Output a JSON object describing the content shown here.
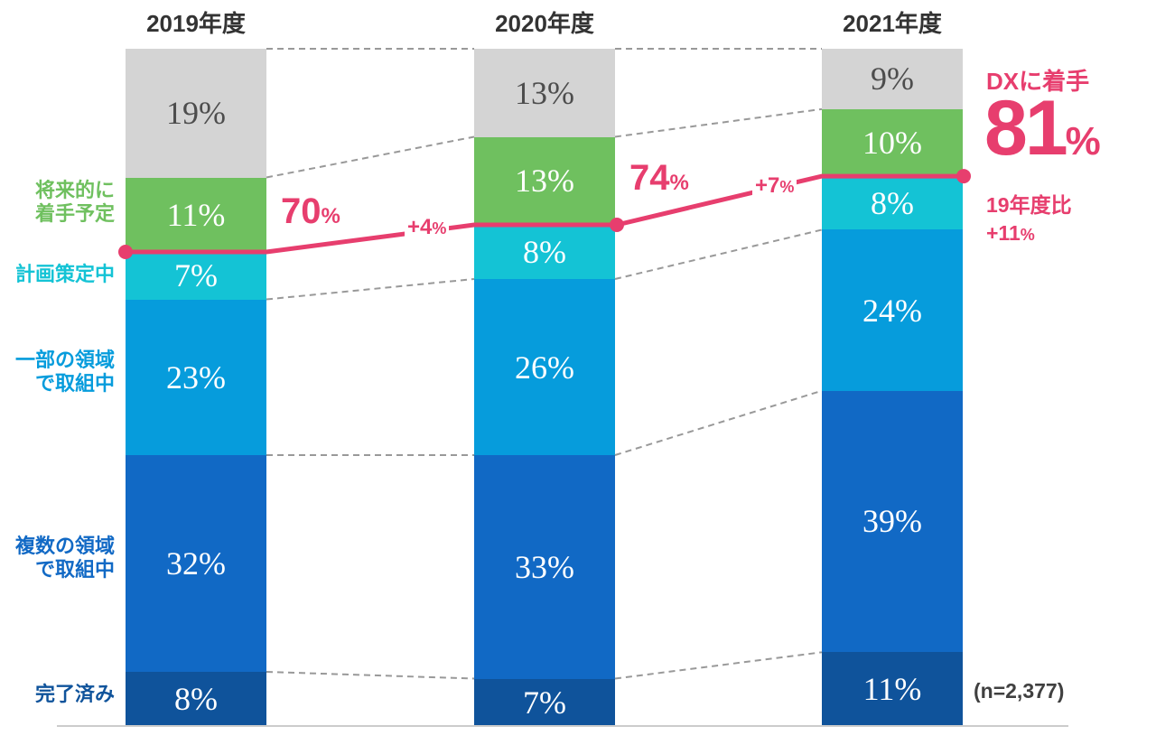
{
  "chart_data": {
    "type": "bar",
    "stacked": true,
    "orientation": "vertical",
    "categories": [
      "2019年度",
      "2020年度",
      "2021年度"
    ],
    "series": [
      {
        "key": "not-started",
        "name": "",
        "color": "#d4d4d4",
        "label_color": "#4d4d4d",
        "values": [
          19,
          13,
          9
        ]
      },
      {
        "key": "planned-future",
        "name": "将来的に着手予定",
        "color": "#6fc05f",
        "label_color": "#ffffff",
        "values": [
          11,
          13,
          10
        ]
      },
      {
        "key": "planning",
        "name": "計画策定中",
        "color": "#14c3d5",
        "label_color": "#ffffff",
        "values": [
          7,
          8,
          8
        ]
      },
      {
        "key": "partial-areas",
        "name": "一部の領域で取組中",
        "color": "#069cdc",
        "label_color": "#ffffff",
        "values": [
          23,
          26,
          24
        ]
      },
      {
        "key": "multiple-areas",
        "name": "複数の領域で取組中",
        "color": "#1169c5",
        "label_color": "#ffffff",
        "values": [
          32,
          33,
          39
        ]
      },
      {
        "key": "completed",
        "name": "完了済み",
        "color": "#0f539b",
        "label_color": "#ffffff",
        "values": [
          8,
          7,
          11
        ]
      }
    ],
    "line": {
      "name": "DXに着手",
      "values": [
        70,
        74,
        81
      ],
      "color": "#e73e6e"
    },
    "value_suffix": "%",
    "connector_color": "#999999",
    "baseline_color": "#cccccc",
    "sample_size": "(n=2,377)",
    "legend_position": "left",
    "grid": false
  },
  "left_labels": [
    {
      "key": "planned-future",
      "color": "#6fc05f",
      "lines": [
        "将来的に",
        "着手予定"
      ]
    },
    {
      "key": "planning",
      "color": "#14c3d5",
      "lines": [
        "計画策定中"
      ]
    },
    {
      "key": "partial-areas",
      "color": "#069cdc",
      "lines": [
        "一部の領域",
        "で取組中"
      ]
    },
    {
      "key": "multiple-areas",
      "color": "#1169c5",
      "lines": [
        "複数の領域",
        "で取組中"
      ]
    },
    {
      "key": "completed",
      "color": "#0f539b",
      "lines": [
        "完了済み"
      ]
    }
  ],
  "annotations": {
    "y2019": {
      "num": "70",
      "pct": "%"
    },
    "delta2020": {
      "num": "+4",
      "pct": "%"
    },
    "y2020": {
      "num": "74",
      "pct": "%"
    },
    "delta2021": {
      "num": "+7",
      "pct": "%"
    },
    "headline": {
      "title": "DXに着手",
      "num": "81",
      "pct": "%",
      "note_line1": "19年度比",
      "note_num": "+11",
      "note_pct": "%"
    },
    "sample": "(n=2,377)"
  }
}
